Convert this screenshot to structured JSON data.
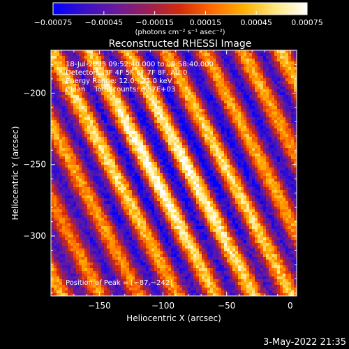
{
  "chart_data": {
    "type": "heatmap",
    "title": "Reconstructed RHESSI Image",
    "xlabel": "Heliocentric X (arcsec)",
    "ylabel": "Heliocentric Y (arcsec)",
    "xlim": [
      -188,
      5
    ],
    "ylim": [
      -342,
      -170
    ],
    "x_ticks": [
      -150,
      -100,
      -50,
      0
    ],
    "x_tick_labels": [
      "−150",
      "−100",
      "−50",
      "0"
    ],
    "y_ticks": [
      -200,
      -250,
      -300
    ],
    "y_tick_labels": [
      "−200",
      "−250",
      "−300"
    ],
    "colorbar": {
      "range": [
        -0.00075,
        0.00075
      ],
      "ticks": [
        -0.00075,
        -0.00045,
        -0.00015,
        0.00015,
        0.00045,
        0.00075
      ],
      "tick_labels": [
        "−0.00075",
        "−0.00045",
        "−0.00015",
        "0.00015",
        "0.00045",
        "0.00075"
      ],
      "unit_label": "(photons cm⁻² s⁻¹ asec⁻²)",
      "colors": [
        "#0000ff",
        "#3a10c8",
        "#6a1a9a",
        "#9b1f55",
        "#d42b0c",
        "#ff6a00",
        "#ffb000",
        "#ffe680",
        "#ffffff"
      ]
    },
    "annotations": [
      "18-Jul-2003 09:52:40.000 to 09:58:40.000",
      "Detectors: 3F 4F 5F 6F 7F 8F, Att 0",
      "Energy Range: 12.0 - 25.0 keV",
      "Clean    Total counts: 6.57E+03"
    ],
    "peak_label": "Position of Peak = [−87,−242]",
    "peak": [
      -87,
      -242
    ],
    "pattern": {
      "description": "diagonal fringe pattern",
      "stripe_direction_deg": -60,
      "stripe_period_arcsec": 26
    }
  },
  "footer": {
    "timestamp": "3-May-2022 21:35"
  }
}
